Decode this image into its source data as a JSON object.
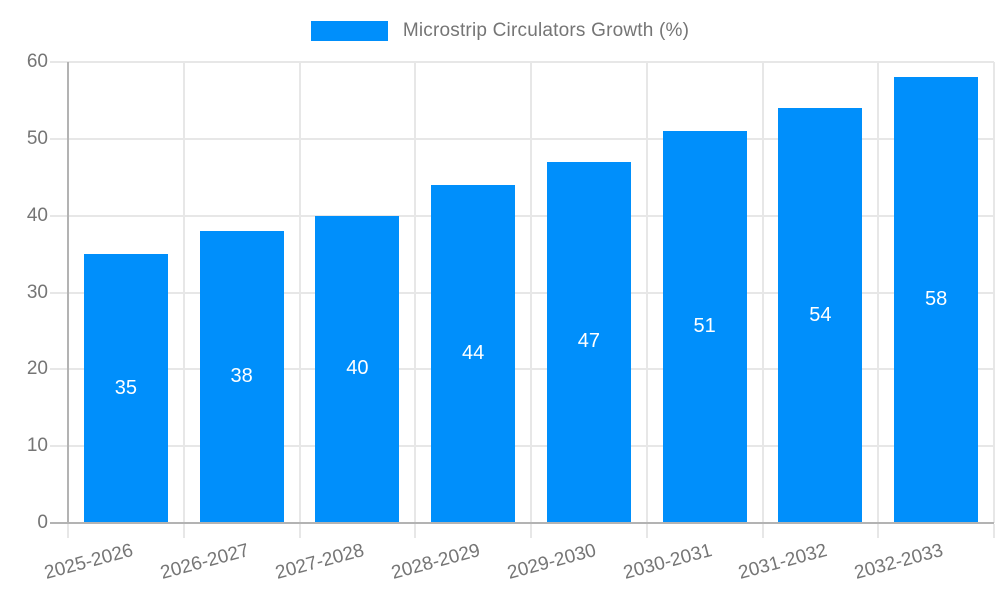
{
  "legend": {
    "label": "Microstrip Circulators Growth (%)",
    "swatch_color": "#008FFB"
  },
  "chart_data": {
    "type": "bar",
    "title": "Microstrip Circulators Growth (%)",
    "categories": [
      "2025-2026",
      "2026-2027",
      "2027-2028",
      "2028-2029",
      "2029-2030",
      "2030-2031",
      "2031-2032",
      "2032-2033"
    ],
    "values": [
      35,
      38,
      40,
      44,
      47,
      51,
      54,
      58
    ],
    "series_name": "Microstrip Circulators Growth (%)",
    "xlabel": "",
    "ylabel": "",
    "ylim": [
      0,
      60
    ],
    "yticks": [
      0,
      10,
      20,
      30,
      40,
      50,
      60
    ],
    "grid": true,
    "legend_position": "top",
    "datalabels_visible": true,
    "colors": {
      "bar": "#008FFB",
      "datalabel": "#ffffff",
      "axis_label": "#757575",
      "grid": "#e7e7e7",
      "axis_line": "#b3b3b3",
      "background": "#ffffff"
    }
  }
}
